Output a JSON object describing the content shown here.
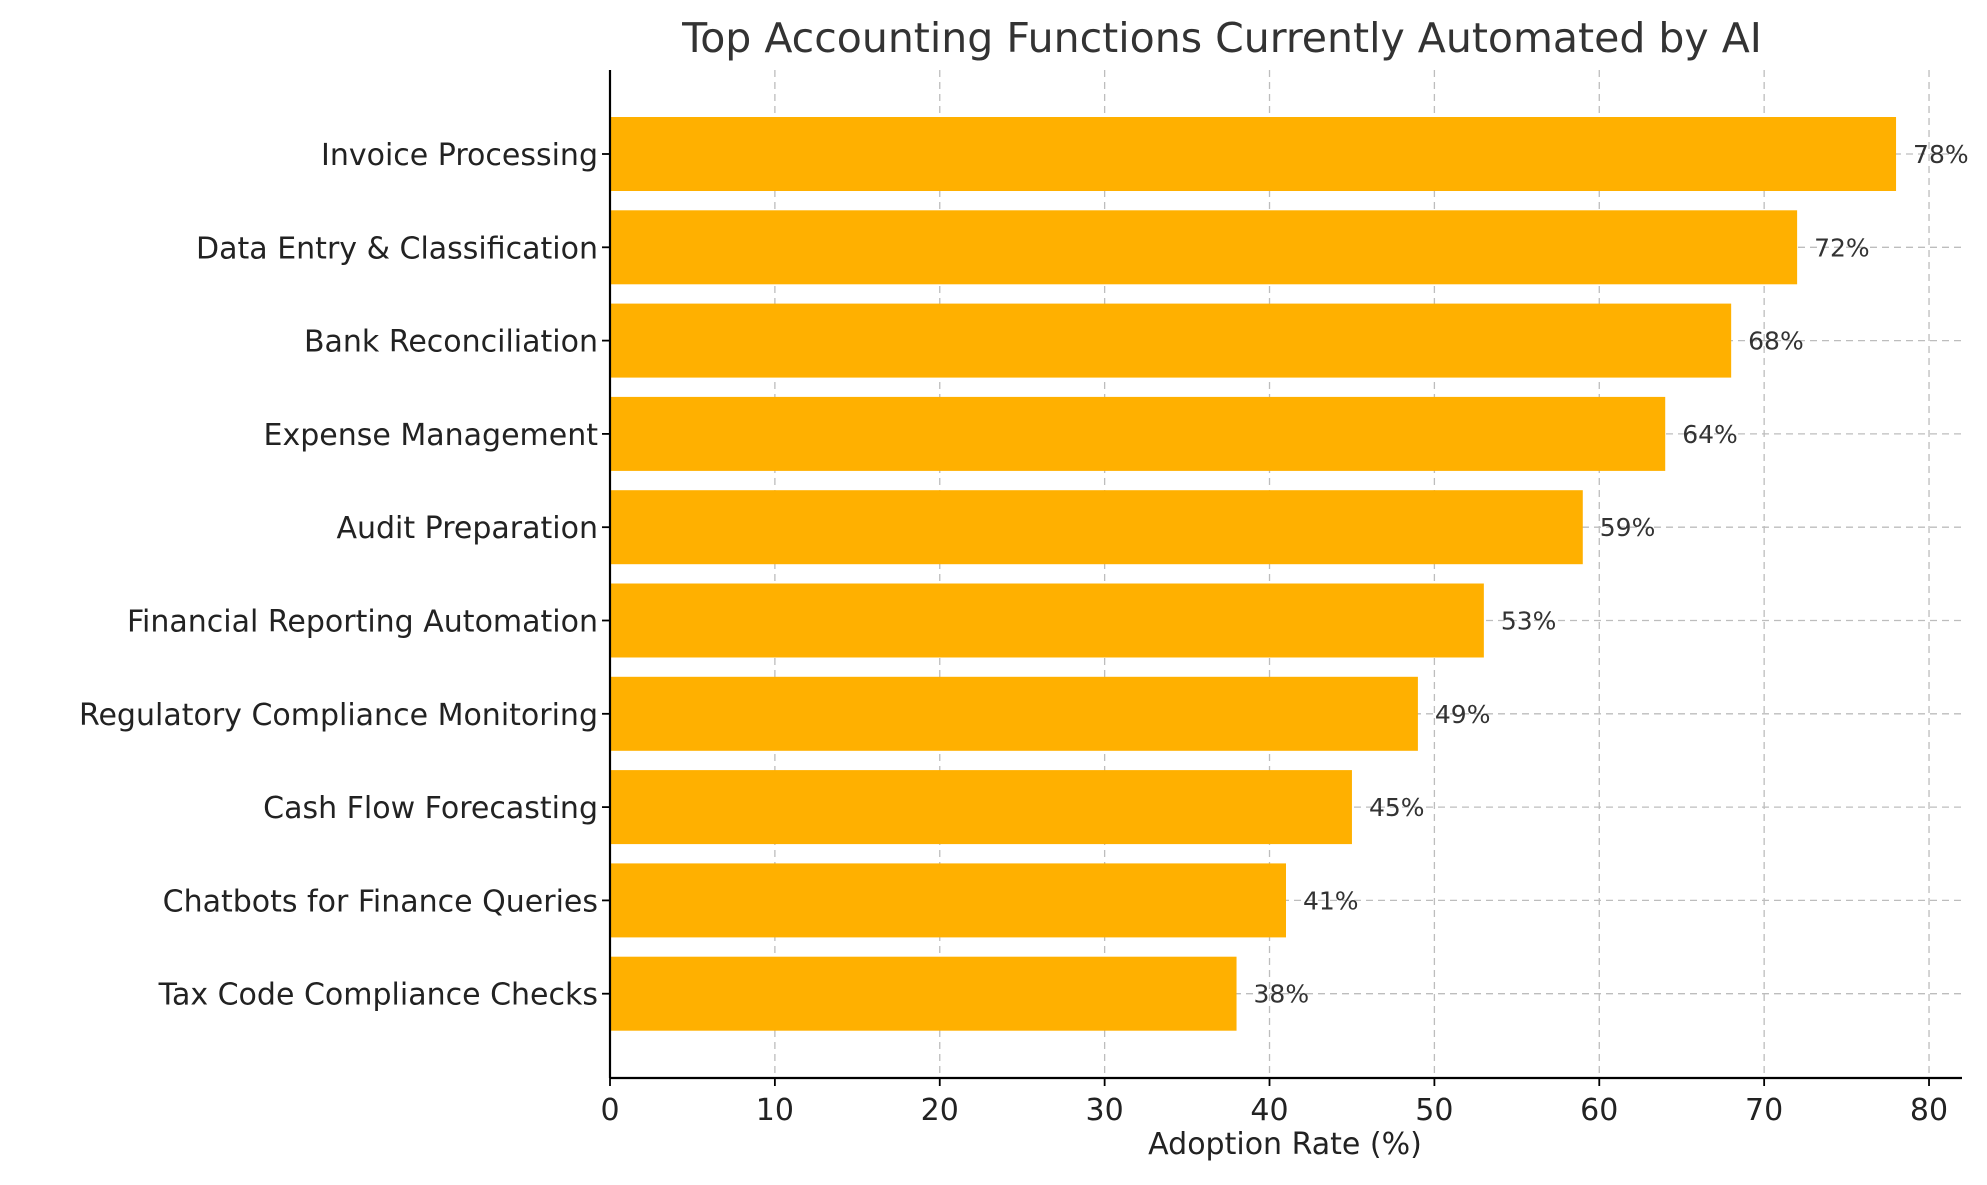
{
  "chart_data": {
    "type": "bar",
    "orientation": "horizontal",
    "title": "Top Accounting Functions Currently Automated by AI",
    "xlabel": "Adoption Rate (%)",
    "ylabel": "",
    "categories": [
      "Invoice Processing",
      "Data Entry & Classification",
      "Bank Reconciliation",
      "Expense Management",
      "Audit Preparation",
      "Financial Reporting Automation",
      "Regulatory Compliance Monitoring",
      "Cash Flow Forecasting",
      "Chatbots for Finance Queries",
      "Tax Code Compliance Checks"
    ],
    "values": [
      78,
      72,
      68,
      64,
      59,
      53,
      49,
      45,
      41,
      38
    ],
    "value_labels": [
      "78%",
      "72%",
      "68%",
      "64%",
      "59%",
      "53%",
      "49%",
      "45%",
      "41%",
      "38%"
    ],
    "xlim": [
      0,
      82
    ],
    "xticks": [
      0,
      10,
      20,
      30,
      40,
      50,
      60,
      70,
      80
    ],
    "grid": true,
    "grid_style": "dashed",
    "bar_color": "#FFB000"
  }
}
